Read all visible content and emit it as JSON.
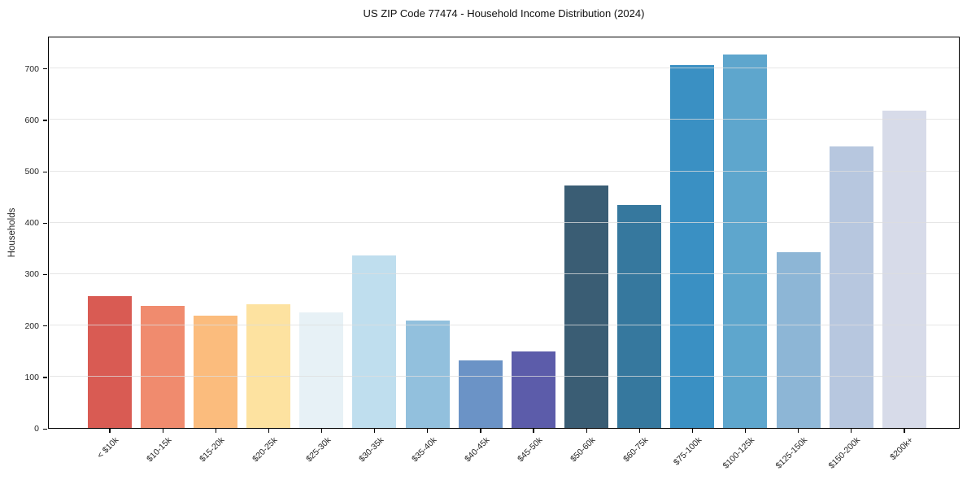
{
  "chart_data": {
    "type": "bar",
    "title": "US ZIP Code 77474 - Household Income Distribution (2024)",
    "xlabel": "",
    "ylabel": "Households",
    "categories": [
      "< $10k",
      "$10-15k",
      "$15-20k",
      "$20-25k",
      "$25-30k",
      "$30-35k",
      "$35-40k",
      "$40-45k",
      "$45-50k",
      "$50-60k",
      "$60-75k",
      "$75-100k",
      "$100-125k",
      "$125-150k",
      "$150-200k",
      "$200k+"
    ],
    "values": [
      257,
      238,
      219,
      241,
      225,
      336,
      209,
      132,
      149,
      472,
      433,
      706,
      727,
      342,
      547,
      618
    ],
    "bar_colors": [
      "#d95b53",
      "#f08b6e",
      "#fbbc7d",
      "#fde2a0",
      "#e7f1f6",
      "#bfdeee",
      "#92c0dd",
      "#6b93c6",
      "#5c5caa",
      "#3a5d74",
      "#36789e",
      "#3a90c3",
      "#5ea6cd",
      "#8db6d6",
      "#b7c7df",
      "#d7dbe9"
    ],
    "yticks": [
      0,
      100,
      200,
      300,
      400,
      500,
      600,
      700
    ],
    "ylim": [
      0,
      763
    ],
    "grid": "horizontal-only",
    "legend": "none",
    "x_tick_rotation_deg": 45,
    "background_color": "#ffffff",
    "spine_color": "#000000"
  }
}
